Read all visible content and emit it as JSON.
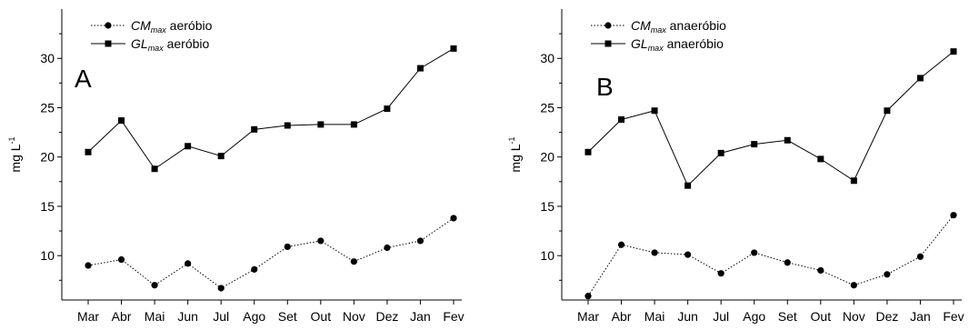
{
  "chart_data": [
    {
      "type": "line",
      "panel_label": "A",
      "ylabel": "mg L",
      "ylabel_sup": "-1",
      "ylim": [
        5.5,
        35
      ],
      "yticks": [
        10,
        15,
        20,
        25,
        30
      ],
      "categories": [
        "Mar",
        "Abr",
        "Mai",
        "Jun",
        "Jul",
        "Ago",
        "Set",
        "Out",
        "Nov",
        "Dez",
        "Jan",
        "Fev"
      ],
      "series": [
        {
          "name_base": "CM",
          "name_sub": "max",
          "name_rest": " aeróbio",
          "style": "dotted",
          "marker": "circle",
          "values": [
            9.0,
            9.6,
            7.0,
            9.2,
            6.7,
            8.6,
            10.9,
            11.5,
            9.4,
            10.8,
            11.5,
            13.8
          ]
        },
        {
          "name_base": "GL",
          "name_sub": "max",
          "name_rest": " aeróbio",
          "style": "solid",
          "marker": "square",
          "values": [
            20.5,
            23.7,
            18.8,
            21.1,
            20.1,
            22.8,
            23.2,
            23.3,
            23.3,
            24.9,
            29.0,
            31.0
          ]
        }
      ]
    },
    {
      "type": "line",
      "panel_label": "B",
      "ylabel": "mg L",
      "ylabel_sup": "-1",
      "ylim": [
        5.5,
        35
      ],
      "yticks": [
        10,
        15,
        20,
        25,
        30
      ],
      "categories": [
        "Mar",
        "Abr",
        "Mai",
        "Jun",
        "Jul",
        "Ago",
        "Set",
        "Out",
        "Nov",
        "Dez",
        "Jan",
        "Fev"
      ],
      "series": [
        {
          "name_base": "CM",
          "name_sub": "max",
          "name_rest": " anaeróbio",
          "style": "dotted",
          "marker": "circle",
          "values": [
            5.9,
            11.1,
            10.3,
            10.1,
            8.2,
            10.3,
            9.3,
            8.5,
            7.0,
            8.1,
            9.9,
            14.1
          ]
        },
        {
          "name_base": "GL",
          "name_sub": "max",
          "name_rest": " anaeróbio",
          "style": "solid",
          "marker": "square",
          "values": [
            20.5,
            23.8,
            24.7,
            17.1,
            20.4,
            21.3,
            21.7,
            19.8,
            17.6,
            24.7,
            28.0,
            30.7
          ]
        }
      ]
    }
  ]
}
